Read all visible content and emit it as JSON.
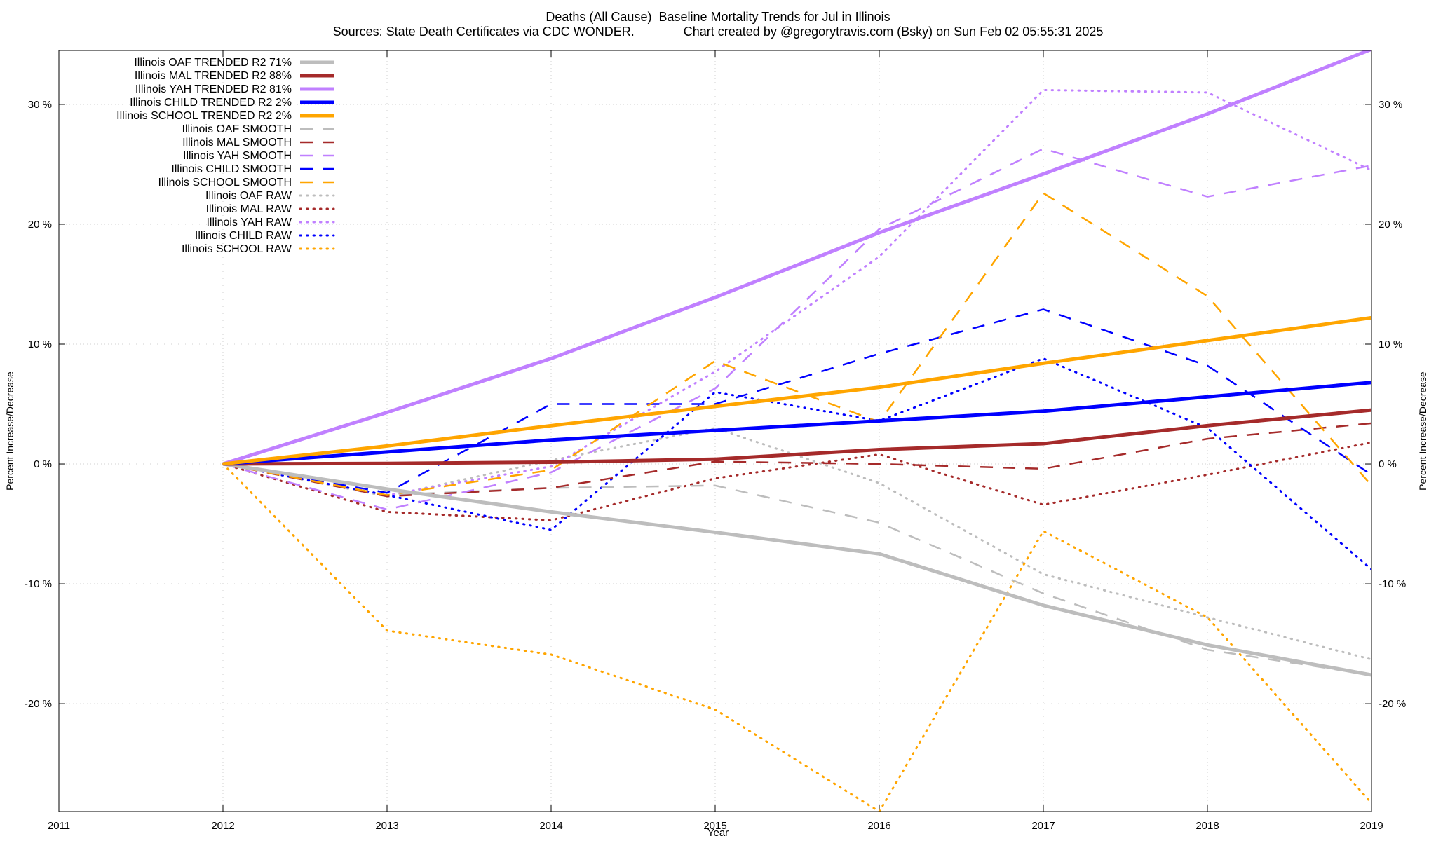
{
  "title_line1": "Deaths (All Cause)  Baseline Mortality Trends for Jul in Illinois",
  "title_line2": "Sources: State Death Certificates via CDC WONDER.              Chart created by @gregorytravis.com (Bsky) on Sun Feb 02 05:55:31 2025",
  "chart_data": {
    "type": "line",
    "title": "Deaths (All Cause)  Baseline Mortality Trends for Jul in Illinois",
    "subtitle": "Sources: State Death Certificates via CDC WONDER.              Chart created by @gregorytravis.com (Bsky) on Sun Feb 02 05:55:31 2025",
    "xlabel": "Year",
    "ylabel": "Percent Increase/Decrease",
    "y2label": "Percent Increase/Decrease",
    "xlim": [
      2011,
      2019
    ],
    "ylim": [
      -29,
      34.5
    ],
    "xticks": [
      2011,
      2012,
      2013,
      2014,
      2015,
      2016,
      2017,
      2018,
      2019
    ],
    "yticks": [
      -20,
      -10,
      0,
      10,
      20,
      30
    ],
    "ytick_labels": [
      "-20 %",
      "-10 %",
      "0 %",
      "10 %",
      "20 %",
      "30 %"
    ],
    "grid": true,
    "legend_position": "top-left",
    "series": [
      {
        "name": "Illinois OAF TRENDED R2  71%",
        "color": "#bdbdbd",
        "style": "solid",
        "width": 5,
        "x": [
          2012,
          2013,
          2014,
          2015,
          2016,
          2017,
          2018,
          2019
        ],
        "y": [
          0,
          -2.1,
          -4.0,
          -5.7,
          -7.5,
          -11.8,
          -15.1,
          -17.6
        ]
      },
      {
        "name": "Illinois MAL TRENDED R2  88%",
        "color": "#a52a2a",
        "style": "solid",
        "width": 5,
        "x": [
          2012,
          2013,
          2014,
          2015,
          2016,
          2017,
          2018,
          2019
        ],
        "y": [
          0,
          0.05,
          0.15,
          0.4,
          1.2,
          1.7,
          3.2,
          4.5
        ]
      },
      {
        "name": "Illinois YAH TRENDED R2  81%",
        "color": "#c080ff",
        "style": "solid",
        "width": 5,
        "x": [
          2012,
          2013,
          2014,
          2015,
          2016,
          2017,
          2018,
          2019
        ],
        "y": [
          0,
          4.3,
          8.8,
          13.9,
          19.3,
          24.2,
          29.2,
          34.6
        ]
      },
      {
        "name": "Illinois CHILD TRENDED R2   2%",
        "color": "#0000ff",
        "style": "solid",
        "width": 5,
        "x": [
          2012,
          2013,
          2014,
          2015,
          2016,
          2017,
          2018,
          2019
        ],
        "y": [
          0,
          1.0,
          2.0,
          2.8,
          3.6,
          4.4,
          5.6,
          6.8
        ]
      },
      {
        "name": "Illinois SCHOOL TRENDED R2   2%",
        "color": "#ffa500",
        "style": "solid",
        "width": 5,
        "x": [
          2012,
          2013,
          2014,
          2015,
          2016,
          2017,
          2018,
          2019
        ],
        "y": [
          0,
          1.5,
          3.2,
          4.8,
          6.4,
          8.4,
          10.3,
          12.2
        ]
      },
      {
        "name": "Illinois OAF SMOOTH",
        "color": "#bdbdbd",
        "style": "dashed",
        "width": 2.5,
        "x": [
          2012,
          2013,
          2014,
          2015,
          2016,
          2017,
          2018,
          2019
        ],
        "y": [
          0,
          -2.6,
          -2.0,
          -1.8,
          -4.9,
          -10.8,
          -15.5,
          -17.6
        ]
      },
      {
        "name": "Illinois MAL SMOOTH",
        "color": "#a52a2a",
        "style": "dashed",
        "width": 2.5,
        "x": [
          2012,
          2013,
          2014,
          2015,
          2016,
          2017,
          2018,
          2019
        ],
        "y": [
          0,
          -2.7,
          -2.0,
          0.2,
          0.0,
          -0.4,
          2.1,
          3.4
        ]
      },
      {
        "name": "Illinois YAH SMOOTH",
        "color": "#c080ff",
        "style": "dashed",
        "width": 2.5,
        "x": [
          2012,
          2013,
          2014,
          2015,
          2016,
          2017,
          2018,
          2019
        ],
        "y": [
          0,
          -3.8,
          -0.7,
          6.3,
          19.6,
          26.3,
          22.3,
          24.9
        ]
      },
      {
        "name": "Illinois CHILD SMOOTH",
        "color": "#0000ff",
        "style": "dashed",
        "width": 2.5,
        "x": [
          2012,
          2013,
          2014,
          2015,
          2016,
          2017,
          2018,
          2019
        ],
        "y": [
          0,
          -2.4,
          5.0,
          5.0,
          9.2,
          12.9,
          8.2,
          -0.9
        ]
      },
      {
        "name": "Illinois SCHOOL SMOOTH",
        "color": "#ffa500",
        "style": "dashed",
        "width": 2.5,
        "x": [
          2012,
          2013,
          2014,
          2015,
          2016,
          2017,
          2018,
          2019
        ],
        "y": [
          0,
          -2.6,
          -0.5,
          8.6,
          3.5,
          22.6,
          14.0,
          -1.8
        ]
      },
      {
        "name": "Illinois OAF RAW",
        "color": "#bdbdbd",
        "style": "dotted",
        "width": 3,
        "x": [
          2012,
          2013,
          2014,
          2015,
          2016,
          2017,
          2018,
          2019
        ],
        "y": [
          0,
          -2.7,
          0.3,
          3.0,
          -1.6,
          -9.2,
          -12.8,
          -16.3
        ]
      },
      {
        "name": "Illinois MAL RAW",
        "color": "#a52a2a",
        "style": "dotted",
        "width": 3,
        "x": [
          2012,
          2013,
          2014,
          2015,
          2016,
          2017,
          2018,
          2019
        ],
        "y": [
          0,
          -4.0,
          -4.7,
          -1.2,
          0.8,
          -3.4,
          -0.9,
          1.8
        ]
      },
      {
        "name": "Illinois YAH RAW",
        "color": "#c080ff",
        "style": "dotted",
        "width": 3,
        "x": [
          2012,
          2013,
          2014,
          2015,
          2016,
          2017,
          2018,
          2019
        ],
        "y": [
          0,
          -2.6,
          -0.2,
          7.7,
          17.3,
          31.2,
          31.0,
          24.5
        ]
      },
      {
        "name": "Illinois CHILD RAW",
        "color": "#0000ff",
        "style": "dotted",
        "width": 3,
        "x": [
          2012,
          2013,
          2014,
          2015,
          2016,
          2017,
          2018,
          2019
        ],
        "y": [
          0,
          -2.6,
          -5.5,
          6.0,
          3.6,
          8.8,
          3.0,
          -8.8
        ]
      },
      {
        "name": "Illinois SCHOOL RAW",
        "color": "#ffa500",
        "style": "dotted",
        "width": 3,
        "x": [
          2012,
          2013,
          2014,
          2015,
          2016,
          2017,
          2018,
          2019
        ],
        "y": [
          0,
          -13.9,
          -15.9,
          -20.5,
          -29.0,
          -5.6,
          -12.8,
          -28.3
        ]
      }
    ]
  }
}
